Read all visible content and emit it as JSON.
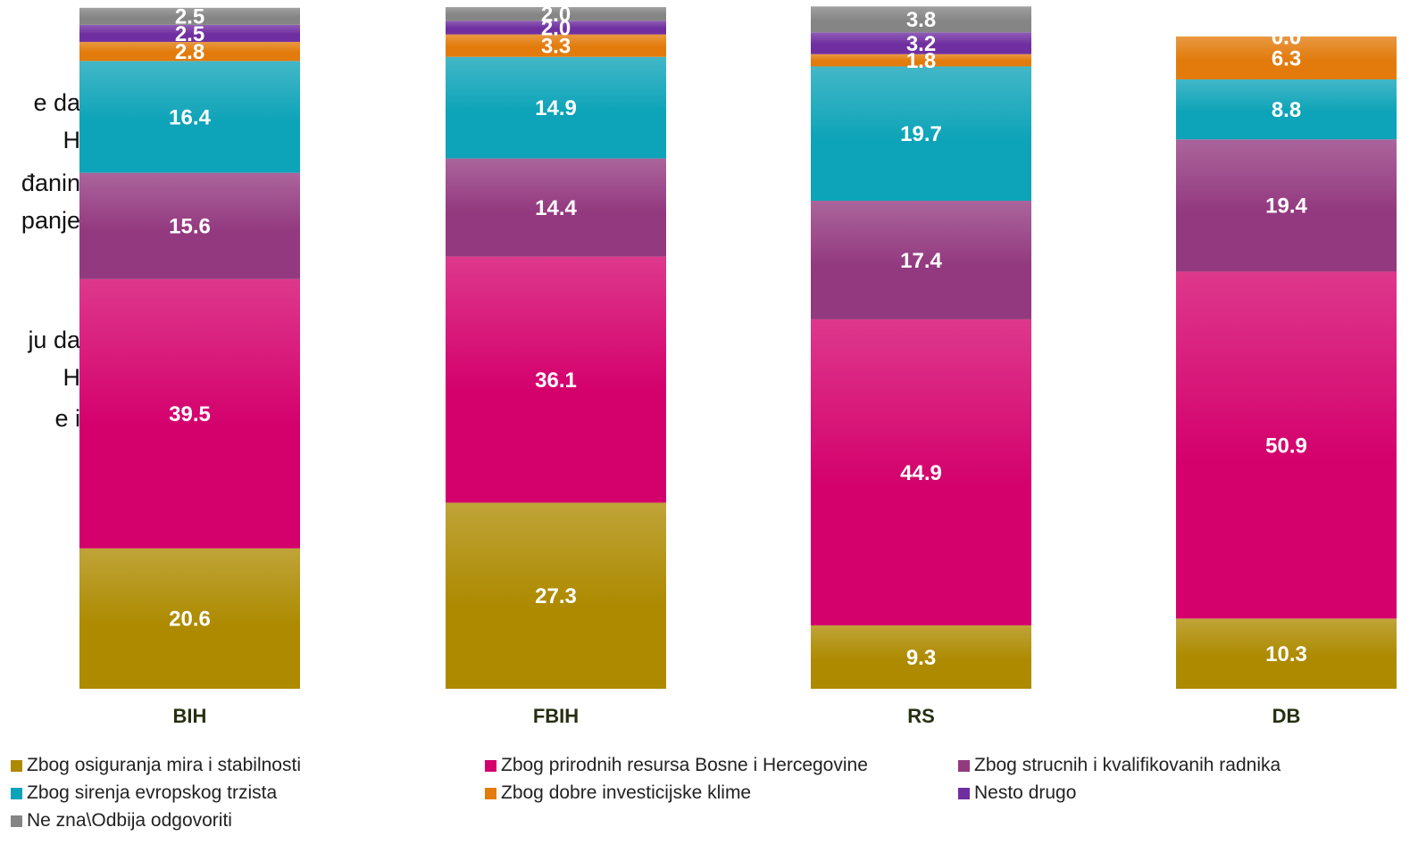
{
  "background_text": [
    "e da",
    "H",
    "đanin",
    "panje",
    "ju da",
    "H",
    "e i"
  ],
  "chart_data": {
    "type": "bar",
    "stacked": true,
    "categories": [
      "BIH",
      "FBIH",
      "RS",
      "DB"
    ],
    "series": [
      {
        "name": "Zbog osiguranja mira i stabilnosti",
        "color": "#ad8a00",
        "values": [
          20.6,
          27.3,
          9.3,
          10.3
        ]
      },
      {
        "name": "Zbog prirodnih resursa Bosne i Hercegovine",
        "color": "#d4006c",
        "values": [
          39.5,
          36.1,
          44.9,
          50.9
        ]
      },
      {
        "name": "Zbog strucnih i kvalifikovanih radnika",
        "color": "#93397f",
        "values": [
          15.6,
          14.4,
          17.4,
          19.4
        ]
      },
      {
        "name": "Zbog sirenja evropskog trzista",
        "color": "#0da3b8",
        "values": [
          16.4,
          14.9,
          19.7,
          8.8
        ]
      },
      {
        "name": "Zbog dobre investicijske klime",
        "color": "#e27b0c",
        "values": [
          2.8,
          3.3,
          1.8,
          6.3
        ]
      },
      {
        "name": "Nesto drugo",
        "color": "#6f2fa0",
        "values": [
          2.5,
          2.0,
          3.2,
          0.0
        ]
      },
      {
        "name": "Ne zna\\Odbija odgovoriti",
        "color": "#858585",
        "values": [
          2.5,
          2.0,
          3.8,
          0.0
        ]
      }
    ],
    "data_labels": true,
    "ylim": [
      0,
      100
    ],
    "legend_position": "bottom"
  }
}
